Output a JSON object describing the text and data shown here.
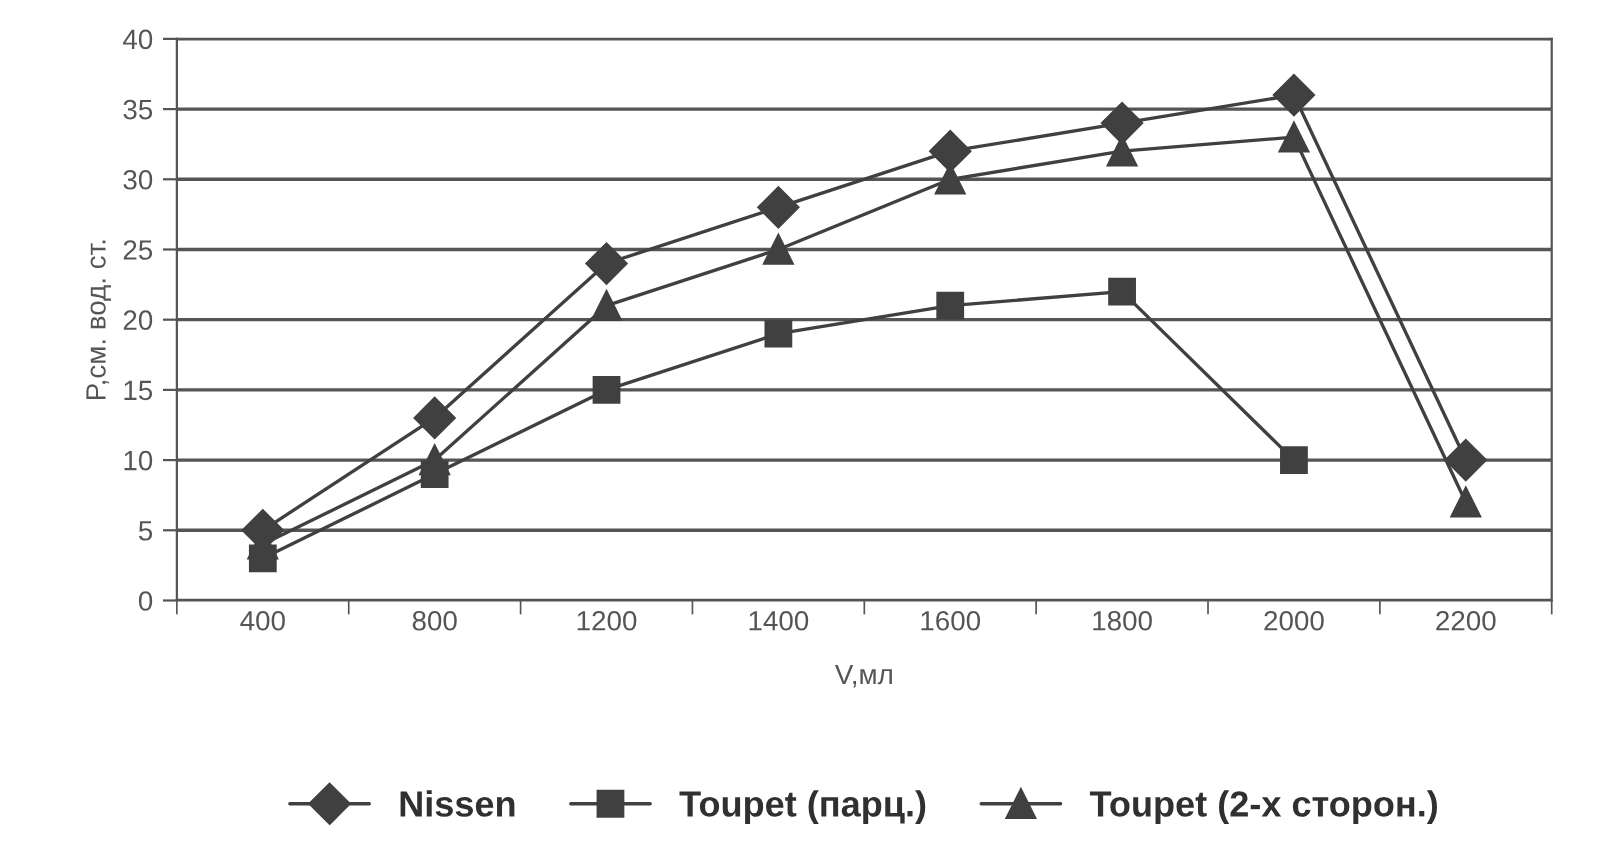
{
  "chart_data": {
    "type": "line",
    "xlabel": "V,мл",
    "ylabel": "P,см. вод. ст.",
    "categories": [
      "400",
      "800",
      "1200",
      "1400",
      "1600",
      "1800",
      "2000",
      "2200"
    ],
    "series": [
      {
        "name": "Nissen",
        "color": "#404040",
        "marker": "diamond",
        "values": [
          5,
          13,
          24,
          28,
          32,
          34,
          36,
          10
        ]
      },
      {
        "name": "Toupet (парц.)",
        "color": "#404040",
        "marker": "square",
        "values": [
          3,
          9,
          15,
          19,
          21,
          22,
          10,
          null
        ]
      },
      {
        "name": "Toupet (2-х сторон.)",
        "color": "#404040",
        "marker": "triangle",
        "values": [
          4,
          10,
          21,
          25,
          30,
          32,
          33,
          7
        ]
      }
    ],
    "ylim": [
      0,
      40
    ],
    "yticks": [
      0,
      5,
      10,
      15,
      20,
      25,
      30,
      35,
      40
    ],
    "grid": "y",
    "legend": "bottom",
    "line_style": "solid"
  }
}
